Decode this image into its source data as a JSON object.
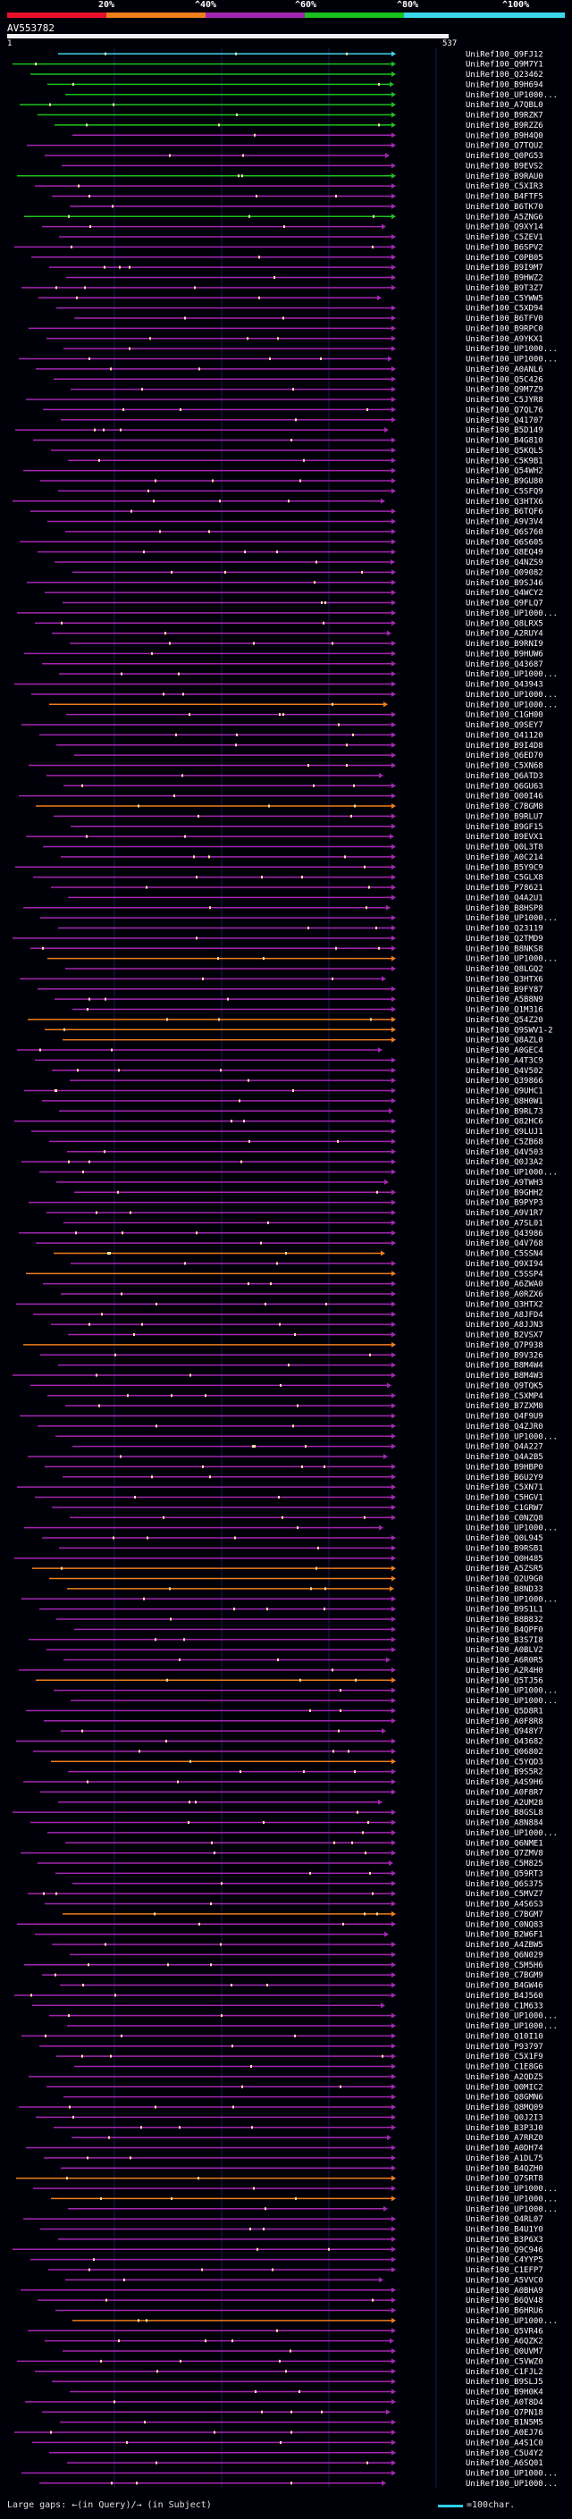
{
  "query": {
    "name": "AV553782",
    "start": "1",
    "end": "537"
  },
  "scale": {
    "ticks": [
      "20%",
      "^40%",
      "^60%",
      "^80%",
      "^100%"
    ],
    "colors": [
      "#e8102a",
      "#f07e1b",
      "#a326b0",
      "#19c21c",
      "#3bd6ea"
    ]
  },
  "hits": [
    {
      "label": "UniRef100_Q9FJ12",
      "color": "#3bd6ea"
    },
    {
      "label": "UniRef100_Q9M7Y1",
      "color": "#19c21c"
    },
    {
      "label": "UniRef100_Q23462",
      "color": "#19c21c"
    },
    {
      "label": "UniRef100_B9H694",
      "color": "#19c21c"
    },
    {
      "label": "UniRef100_UP1000...",
      "color": "#19c21c"
    },
    {
      "label": "UniRef100_A7QBL0",
      "color": "#19c21c"
    },
    {
      "label": "UniRef100_B9RZK7",
      "color": "#19c21c"
    },
    {
      "label": "UniRef100_B9RZZ6",
      "color": "#19c21c"
    },
    {
      "label": "UniRef100_B9H4Q0",
      "color": "#a326b0"
    },
    {
      "label": "UniRef100_Q7TQU2",
      "color": "#a326b0"
    },
    {
      "label": "UniRef100_Q0PG53",
      "color": "#a326b0"
    },
    {
      "label": "UniRef100_B9EVS2",
      "color": "#a326b0"
    },
    {
      "label": "UniRef100_B9RAU0",
      "color": "#19c21c"
    },
    {
      "label": "UniRef100_C5XIR3",
      "color": "#a326b0"
    },
    {
      "label": "UniRef100_B4FTF5",
      "color": "#a326b0"
    },
    {
      "label": "UniRef100_B6TK70",
      "color": "#a326b0"
    },
    {
      "label": "UniRef100_A5ZNG6",
      "color": "#19c21c"
    },
    {
      "label": "UniRef100_Q9XY14",
      "color": "#a326b0"
    },
    {
      "label": "UniRef100_C5ZEV1",
      "color": "#a326b0"
    },
    {
      "label": "UniRef100_B6SPV2",
      "color": "#a326b0"
    },
    {
      "label": "UniRef100_C0PB05",
      "color": "#a326b0"
    },
    {
      "label": "UniRef100_B9I9M7",
      "color": "#a326b0"
    },
    {
      "label": "UniRef100_B9HWZ2",
      "color": "#a326b0"
    },
    {
      "label": "UniRef100_B9T3Z7",
      "color": "#a326b0"
    },
    {
      "label": "UniRef100_C5YWW5",
      "color": "#a326b0"
    },
    {
      "label": "UniRef100_C5XD94",
      "color": "#a326b0"
    },
    {
      "label": "UniRef100_B6TFV0",
      "color": "#a326b0"
    },
    {
      "label": "UniRef100_B9RPC0",
      "color": "#a326b0"
    },
    {
      "label": "UniRef100_A9YKX1",
      "color": "#a326b0"
    },
    {
      "label": "UniRef100_UP1000...",
      "color": "#a326b0"
    },
    {
      "label": "UniRef100_UP1000...",
      "color": "#a326b0"
    },
    {
      "label": "UniRef100_A0ANL6",
      "color": "#a326b0"
    },
    {
      "label": "UniRef100_Q5C426",
      "color": "#a326b0"
    },
    {
      "label": "UniRef100_Q9M7Z9",
      "color": "#a326b0"
    },
    {
      "label": "UniRef100_C5JYR8",
      "color": "#a326b0"
    },
    {
      "label": "UniRef100_Q7QL76",
      "color": "#a326b0"
    },
    {
      "label": "UniRef100_Q41707",
      "color": "#a326b0"
    },
    {
      "label": "UniRef100_B5D149",
      "color": "#a326b0"
    },
    {
      "label": "UniRef100_B4G810",
      "color": "#a326b0"
    },
    {
      "label": "UniRef100_Q5KQL5",
      "color": "#a326b0"
    },
    {
      "label": "UniRef100_C5K9B1",
      "color": "#a326b0"
    },
    {
      "label": "UniRef100_Q54WH2",
      "color": "#a326b0"
    },
    {
      "label": "UniRef100_B9GU80",
      "color": "#a326b0"
    },
    {
      "label": "UniRef100_C5SFQ9",
      "color": "#a326b0"
    },
    {
      "label": "UniRef100_Q3HTX6",
      "color": "#a326b0"
    },
    {
      "label": "UniRef100_B6TQF6",
      "color": "#a326b0"
    },
    {
      "label": "UniRef100_A9V3V4",
      "color": "#a326b0"
    },
    {
      "label": "UniRef100_Q6S760",
      "color": "#a326b0"
    },
    {
      "label": "UniRef100_Q6S605",
      "color": "#a326b0"
    },
    {
      "label": "UniRef100_Q8EQ49",
      "color": "#a326b0"
    },
    {
      "label": "UniRef100_Q4NZS9",
      "color": "#a326b0"
    },
    {
      "label": "UniRef100_Q09082",
      "color": "#a326b0"
    },
    {
      "label": "UniRef100_B9SJ46",
      "color": "#a326b0"
    },
    {
      "label": "UniRef100_Q4WCY2",
      "color": "#a326b0"
    },
    {
      "label": "UniRef100_Q9FLQ7",
      "color": "#a326b0"
    },
    {
      "label": "UniRef100_UP1000...",
      "color": "#a326b0"
    },
    {
      "label": "UniRef100_Q8LRX5",
      "color": "#a326b0"
    },
    {
      "label": "UniRef100_A2RUY4",
      "color": "#a326b0"
    },
    {
      "label": "UniRef100_B9RNI9",
      "color": "#a326b0"
    },
    {
      "label": "UniRef100_B9HUW6",
      "color": "#a326b0"
    },
    {
      "label": "UniRef100_Q43687",
      "color": "#a326b0"
    },
    {
      "label": "UniRef100_UP1000...",
      "color": "#a326b0"
    },
    {
      "label": "UniRef100_Q43943",
      "color": "#a326b0"
    },
    {
      "label": "UniRef100_UP1000...",
      "color": "#a326b0"
    },
    {
      "label": "UniRef100_UP1000...",
      "color": "#f07e1b"
    },
    {
      "label": "UniRef100_C1GH00",
      "color": "#a326b0"
    },
    {
      "label": "UniRef100_Q9SEY7",
      "color": "#a326b0"
    },
    {
      "label": "UniRef100_Q41120",
      "color": "#a326b0"
    },
    {
      "label": "UniRef100_B9I4D8",
      "color": "#a326b0"
    },
    {
      "label": "UniRef100_Q6ED70",
      "color": "#a326b0"
    },
    {
      "label": "UniRef100_C5XN68",
      "color": "#a326b0"
    },
    {
      "label": "UniRef100_Q6ATD3",
      "color": "#a326b0"
    },
    {
      "label": "UniRef100_Q6GU63",
      "color": "#a326b0"
    },
    {
      "label": "UniRef100_Q00I46",
      "color": "#a326b0"
    },
    {
      "label": "UniRef100_C7BGM8",
      "color": "#f07e1b"
    },
    {
      "label": "UniRef100_B9RLU7",
      "color": "#a326b0"
    },
    {
      "label": "UniRef100_B9GF15",
      "color": "#a326b0"
    },
    {
      "label": "UniRef100_B9EVX1",
      "color": "#a326b0"
    },
    {
      "label": "UniRef100_Q0L3T8",
      "color": "#a326b0"
    },
    {
      "label": "UniRef100_A0C214",
      "color": "#a326b0"
    },
    {
      "label": "UniRef100_B5Y9C9",
      "color": "#a326b0"
    },
    {
      "label": "UniRef100_C5GLX8",
      "color": "#a326b0"
    },
    {
      "label": "UniRef100_P78621",
      "color": "#a326b0"
    },
    {
      "label": "UniRef100_Q4A2U1",
      "color": "#a326b0"
    },
    {
      "label": "UniRef100_B8HSP8",
      "color": "#a326b0"
    },
    {
      "label": "UniRef100_UP1000...",
      "color": "#a326b0"
    },
    {
      "label": "UniRef100_Q23119",
      "color": "#a326b0"
    },
    {
      "label": "UniRef100_Q2TMD9",
      "color": "#a326b0"
    },
    {
      "label": "UniRef100_B8NKS8",
      "color": "#a326b0"
    },
    {
      "label": "UniRef100_UP1000...",
      "color": "#f07e1b"
    },
    {
      "label": "UniRef100_Q8LGQ2",
      "color": "#a326b0"
    },
    {
      "label": "UniRef100_Q3HTX6",
      "color": "#a326b0"
    },
    {
      "label": "UniRef100_B9FY87",
      "color": "#a326b0"
    },
    {
      "label": "UniRef100_A5B8N9",
      "color": "#a326b0"
    },
    {
      "label": "UniRef100_Q1M316",
      "color": "#a326b0"
    },
    {
      "label": "UniRef100_Q54Z20",
      "color": "#f07e1b"
    },
    {
      "label": "UniRef100_Q9SWV1-2",
      "color": "#f07e1b"
    },
    {
      "label": "UniRef100_Q8AZL0",
      "color": "#f07e1b"
    },
    {
      "label": "UniRef100_A0GEC4",
      "color": "#a326b0"
    },
    {
      "label": "UniRef100_A4T3C9",
      "color": "#a326b0"
    },
    {
      "label": "UniRef100_Q4V502",
      "color": "#a326b0"
    },
    {
      "label": "UniRef100_Q39866",
      "color": "#a326b0"
    },
    {
      "label": "UniRef100_Q9UHC1",
      "color": "#a326b0"
    },
    {
      "label": "UniRef100_Q8H0W1",
      "color": "#a326b0"
    },
    {
      "label": "UniRef100_B9RL73",
      "color": "#a326b0"
    },
    {
      "label": "UniRef100_Q82HC6",
      "color": "#a326b0"
    },
    {
      "label": "UniRef100_Q9LUJ1",
      "color": "#a326b0"
    },
    {
      "label": "UniRef100_C5ZB68",
      "color": "#a326b0"
    },
    {
      "label": "UniRef100_Q4V503",
      "color": "#a326b0"
    },
    {
      "label": "UniRef100_Q0J3A2",
      "color": "#a326b0"
    },
    {
      "label": "UniRef100_UP1000...",
      "color": "#a326b0"
    },
    {
      "label": "UniRef100_A9TWH3",
      "color": "#a326b0"
    },
    {
      "label": "UniRef100_B9GHH2",
      "color": "#a326b0"
    },
    {
      "label": "UniRef100_B9PYP3",
      "color": "#a326b0"
    },
    {
      "label": "UniRef100_A9V1R7",
      "color": "#a326b0"
    },
    {
      "label": "UniRef100_A7SL01",
      "color": "#a326b0"
    },
    {
      "label": "UniRef100_Q43986",
      "color": "#a326b0"
    },
    {
      "label": "UniRef100_Q4V768",
      "color": "#a326b0"
    },
    {
      "label": "UniRef100_C5SSN4",
      "color": "#f07e1b"
    },
    {
      "label": "UniRef100_Q9XI94",
      "color": "#a326b0"
    },
    {
      "label": "UniRef100_C5SSP4",
      "color": "#f07e1b"
    },
    {
      "label": "UniRef100_A6ZWA0",
      "color": "#a326b0"
    },
    {
      "label": "UniRef100_A0RZX6",
      "color": "#a326b0"
    },
    {
      "label": "UniRef100_Q3HTX2",
      "color": "#a326b0"
    },
    {
      "label": "UniRef100_A8JFD4",
      "color": "#a326b0"
    },
    {
      "label": "UniRef100_A8JJN3",
      "color": "#a326b0"
    },
    {
      "label": "UniRef100_B2VSX7",
      "color": "#a326b0"
    },
    {
      "label": "UniRef100_Q7P938",
      "color": "#f07e1b"
    },
    {
      "label": "UniRef100_B9V326",
      "color": "#a326b0"
    },
    {
      "label": "UniRef100_B8M4W4",
      "color": "#a326b0"
    },
    {
      "label": "UniRef100_B8M4W3",
      "color": "#a326b0"
    },
    {
      "label": "UniRef100_Q9TQK5",
      "color": "#a326b0"
    },
    {
      "label": "UniRef100_C5XMP4",
      "color": "#a326b0"
    },
    {
      "label": "UniRef100_B7ZXM8",
      "color": "#a326b0"
    },
    {
      "label": "UniRef100_Q4F9U9",
      "color": "#a326b0"
    },
    {
      "label": "UniRef100_Q4ZJR0",
      "color": "#a326b0"
    },
    {
      "label": "UniRef100_UP1000...",
      "color": "#a326b0"
    },
    {
      "label": "UniRef100_Q4A227",
      "color": "#a326b0"
    },
    {
      "label": "UniRef100_Q4A2B5",
      "color": "#a326b0"
    },
    {
      "label": "UniRef100_B9HBP0",
      "color": "#a326b0"
    },
    {
      "label": "UniRef100_B6U2Y9",
      "color": "#a326b0"
    },
    {
      "label": "UniRef100_C5XN71",
      "color": "#a326b0"
    },
    {
      "label": "UniRef100_C5HGV1",
      "color": "#a326b0"
    },
    {
      "label": "UniRef100_C1GRW7",
      "color": "#a326b0"
    },
    {
      "label": "UniRef100_C0NZQ8",
      "color": "#a326b0"
    },
    {
      "label": "UniRef100_UP1000...",
      "color": "#a326b0"
    },
    {
      "label": "UniRef100_Q0L945",
      "color": "#a326b0"
    },
    {
      "label": "UniRef100_B9RSB1",
      "color": "#a326b0"
    },
    {
      "label": "UniRef100_Q0H485",
      "color": "#a326b0"
    },
    {
      "label": "UniRef100_A5ZSR5",
      "color": "#f07e1b"
    },
    {
      "label": "UniRef100_Q2U9G0",
      "color": "#f07e1b"
    },
    {
      "label": "UniRef100_B8ND33",
      "color": "#f07e1b"
    },
    {
      "label": "UniRef100_UP1000...",
      "color": "#a326b0"
    },
    {
      "label": "UniRef100_B9S1L1",
      "color": "#a326b0"
    },
    {
      "label": "UniRef100_B8B832",
      "color": "#a326b0"
    },
    {
      "label": "UniRef100_B4QPF0",
      "color": "#a326b0"
    },
    {
      "label": "UniRef100_B3S7I8",
      "color": "#a326b0"
    },
    {
      "label": "UniRef100_A0BLV2",
      "color": "#a326b0"
    },
    {
      "label": "UniRef100_A6R0R5",
      "color": "#a326b0"
    },
    {
      "label": "UniRef100_A2R4H0",
      "color": "#a326b0"
    },
    {
      "label": "UniRef100_Q5TJ56",
      "color": "#f07e1b"
    },
    {
      "label": "UniRef100_UP1000...",
      "color": "#a326b0"
    },
    {
      "label": "UniRef100_UP1000...",
      "color": "#a326b0"
    },
    {
      "label": "UniRef100_Q5D8R1",
      "color": "#a326b0"
    },
    {
      "label": "UniRef100_A0F8R8",
      "color": "#a326b0"
    },
    {
      "label": "UniRef100_Q948Y7",
      "color": "#a326b0"
    },
    {
      "label": "UniRef100_Q43682",
      "color": "#a326b0"
    },
    {
      "label": "UniRef100_Q06802",
      "color": "#a326b0"
    },
    {
      "label": "UniRef100_C5YQD3",
      "color": "#f07e1b"
    },
    {
      "label": "UniRef100_B9S5R2",
      "color": "#a326b0"
    },
    {
      "label": "UniRef100_A4S9H6",
      "color": "#a326b0"
    },
    {
      "label": "UniRef100_A0F8R7",
      "color": "#a326b0"
    },
    {
      "label": "UniRef100_A2UM28",
      "color": "#a326b0"
    },
    {
      "label": "UniRef100_B8GSL8",
      "color": "#a326b0"
    },
    {
      "label": "UniRef100_A8N884",
      "color": "#a326b0"
    },
    {
      "label": "UniRef100_UP1000...",
      "color": "#a326b0"
    },
    {
      "label": "UniRef100_Q6NME1",
      "color": "#a326b0"
    },
    {
      "label": "UniRef100_Q7ZMV8",
      "color": "#a326b0"
    },
    {
      "label": "UniRef100_C5M825",
      "color": "#a326b0"
    },
    {
      "label": "UniRef100_Q59RT3",
      "color": "#a326b0"
    },
    {
      "label": "UniRef100_Q6S375",
      "color": "#a326b0"
    },
    {
      "label": "UniRef100_C5MVZ7",
      "color": "#a326b0"
    },
    {
      "label": "UniRef100_A4S6S3",
      "color": "#a326b0"
    },
    {
      "label": "UniRef100_C7BGM7",
      "color": "#f07e1b"
    },
    {
      "label": "UniRef100_C0NQ83",
      "color": "#a326b0"
    },
    {
      "label": "UniRef100_B2W6F1",
      "color": "#a326b0"
    },
    {
      "label": "UniRef100_A4ZBW5",
      "color": "#a326b0"
    },
    {
      "label": "UniRef100_Q6N029",
      "color": "#a326b0"
    },
    {
      "label": "UniRef100_C5M5H6",
      "color": "#a326b0"
    },
    {
      "label": "UniRef100_C7BGM9",
      "color": "#a326b0"
    },
    {
      "label": "UniRef100_B4GW46",
      "color": "#a326b0"
    },
    {
      "label": "UniRef100_B4J560",
      "color": "#a326b0"
    },
    {
      "label": "UniRef100_C1M633",
      "color": "#a326b0"
    },
    {
      "label": "UniRef100_UP1000...",
      "color": "#a326b0"
    },
    {
      "label": "UniRef100_UP1000...",
      "color": "#a326b0"
    },
    {
      "label": "UniRef100_Q10I10",
      "color": "#a326b0"
    },
    {
      "label": "UniRef100_P93797",
      "color": "#a326b0"
    },
    {
      "label": "UniRef100_C5X1F9",
      "color": "#a326b0"
    },
    {
      "label": "UniRef100_C1E8G6",
      "color": "#a326b0"
    },
    {
      "label": "UniRef100_A2QDZ5",
      "color": "#a326b0"
    },
    {
      "label": "UniRef100_Q0MIC2",
      "color": "#a326b0"
    },
    {
      "label": "UniRef100_Q8GMN6",
      "color": "#a326b0"
    },
    {
      "label": "UniRef100_Q8MQ09",
      "color": "#a326b0"
    },
    {
      "label": "UniRef100_Q0J2I3",
      "color": "#a326b0"
    },
    {
      "label": "UniRef100_B3P3J0",
      "color": "#a326b0"
    },
    {
      "label": "UniRef100_A7RRZ0",
      "color": "#a326b0"
    },
    {
      "label": "UniRef100_A0DH74",
      "color": "#a326b0"
    },
    {
      "label": "UniRef100_A1DL75",
      "color": "#a326b0"
    },
    {
      "label": "UniRef100_B4QZH0",
      "color": "#a326b0"
    },
    {
      "label": "UniRef100_Q7SRT8",
      "color": "#f07e1b"
    },
    {
      "label": "UniRef100_UP1000...",
      "color": "#a326b0"
    },
    {
      "label": "UniRef100_UP1000...",
      "color": "#f07e1b"
    },
    {
      "label": "UniRef100_UP1000...",
      "color": "#a326b0"
    },
    {
      "label": "UniRef100_Q4RL07",
      "color": "#a326b0"
    },
    {
      "label": "UniRef100_B4U1Y0",
      "color": "#a326b0"
    },
    {
      "label": "UniRef100_B3P6X3",
      "color": "#a326b0"
    },
    {
      "label": "UniRef100_Q9C946",
      "color": "#a326b0"
    },
    {
      "label": "UniRef100_C4YYP5",
      "color": "#a326b0"
    },
    {
      "label": "UniRef100_C1EFP7",
      "color": "#a326b0"
    },
    {
      "label": "UniRef100_A5VVC0",
      "color": "#a326b0"
    },
    {
      "label": "UniRef100_A0BHA9",
      "color": "#a326b0"
    },
    {
      "label": "UniRef100_B6QV48",
      "color": "#a326b0"
    },
    {
      "label": "UniRef100_B6HRU6",
      "color": "#a326b0"
    },
    {
      "label": "UniRef100_UP1000...",
      "color": "#f07e1b"
    },
    {
      "label": "UniRef100_Q5VR46",
      "color": "#a326b0"
    },
    {
      "label": "UniRef100_A6QZK2",
      "color": "#a326b0"
    },
    {
      "label": "UniRef100_Q0UVM7",
      "color": "#a326b0"
    },
    {
      "label": "UniRef100_C5VWZ0",
      "color": "#a326b0"
    },
    {
      "label": "UniRef100_C1FJL2",
      "color": "#a326b0"
    },
    {
      "label": "UniRef100_B9SLJ5",
      "color": "#a326b0"
    },
    {
      "label": "UniRef100_B9H0K4",
      "color": "#a326b0"
    },
    {
      "label": "UniRef100_A0T8D4",
      "color": "#a326b0"
    },
    {
      "label": "UniRef100_Q7PN18",
      "color": "#a326b0"
    },
    {
      "label": "UniRef100_B1N5M5",
      "color": "#a326b0"
    },
    {
      "label": "UniRef100_A0EJ76",
      "color": "#a326b0"
    },
    {
      "label": "UniRef100_A4S1C0",
      "color": "#a326b0"
    },
    {
      "label": "UniRef100_C5U4Y2",
      "color": "#a326b0"
    },
    {
      "label": "UniRef100_A6SQ01",
      "color": "#a326b0"
    },
    {
      "label": "UniRef100_UP1000...",
      "color": "#a326b0"
    },
    {
      "label": "UniRef100_UP1000...",
      "color": "#a326b0"
    }
  ],
  "legend": {
    "gaps_text": "Large gaps: ←(in Query)/→ (in Subject)",
    "scale_text": "=100char."
  }
}
